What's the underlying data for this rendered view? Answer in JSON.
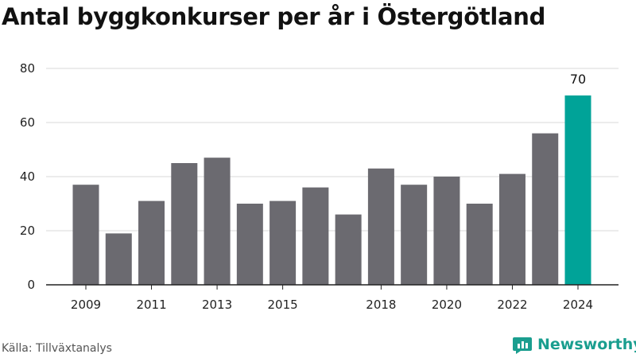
{
  "chart_data": {
    "type": "bar",
    "title": "Antal byggkonkurser per år i Östergötland",
    "xlabel": "",
    "ylabel": "",
    "categories": [
      "2009",
      "2010",
      "2011",
      "2012",
      "2013",
      "2014",
      "2015",
      "2016",
      "2017",
      "2018",
      "2019",
      "2020",
      "2021",
      "2022",
      "2023",
      "2024"
    ],
    "x_tick_labels": [
      "2009",
      "",
      "2011",
      "",
      "2013",
      "",
      "2015",
      "",
      "",
      "2018",
      "",
      "2020",
      "",
      "2022",
      "",
      "2024"
    ],
    "values": [
      37,
      19,
      31,
      45,
      47,
      30,
      31,
      36,
      26,
      43,
      37,
      40,
      30,
      41,
      56,
      70
    ],
    "ylim": [
      0,
      80
    ],
    "y_ticks": [
      0,
      20,
      40,
      60,
      80
    ],
    "grid": true,
    "highlight": {
      "category": "2024",
      "label": "70"
    },
    "colors": {
      "bar": "#6b6a70",
      "highlight": "#00a398",
      "grid": "#d9d9d9",
      "axis": "#222222"
    }
  },
  "footer": {
    "source": "Källa: Tillväxtanalys",
    "brand": "Newsworthy",
    "brand_icon": "newsworthy-logo-icon",
    "brand_color": "#1a9e8f"
  }
}
